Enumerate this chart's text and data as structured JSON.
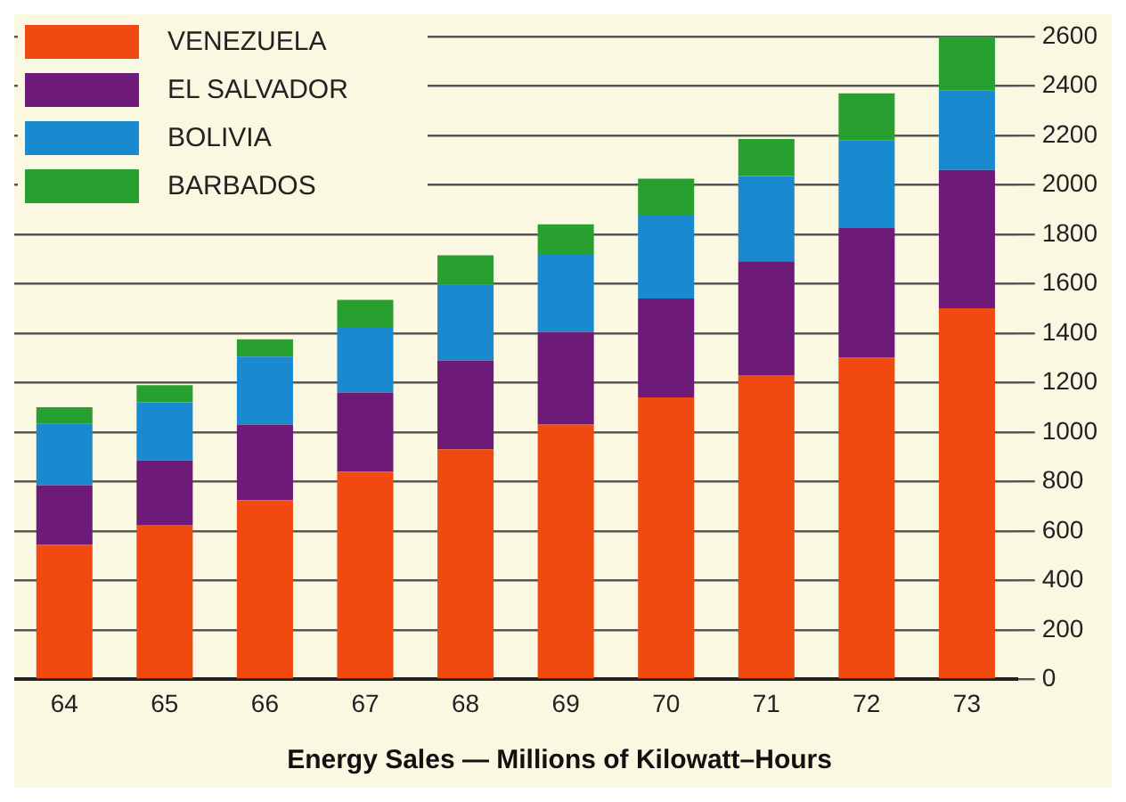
{
  "chart_data": {
    "type": "bar",
    "title": "Energy Sales — Millions of Kilowatt–Hours",
    "categories": [
      "64",
      "65",
      "66",
      "67",
      "68",
      "69",
      "70",
      "71",
      "72",
      "73"
    ],
    "series": [
      {
        "name": "VENEZUELA",
        "color": "#f04a10",
        "values": [
          545,
          625,
          725,
          840,
          930,
          1030,
          1140,
          1230,
          1300,
          1500
        ]
      },
      {
        "name": "EL SALVADOR",
        "color": "#6e1a78",
        "values": [
          240,
          260,
          305,
          320,
          360,
          375,
          400,
          460,
          525,
          560
        ]
      },
      {
        "name": "BOLIVIA",
        "color": "#1a8ad0",
        "values": [
          250,
          235,
          275,
          265,
          305,
          315,
          335,
          345,
          355,
          320
        ]
      },
      {
        "name": "BARBADOS",
        "color": "#28a030",
        "values": [
          65,
          70,
          70,
          110,
          120,
          120,
          150,
          150,
          190,
          220
        ]
      }
    ],
    "stacked": true,
    "ylim": [
      0,
      2600
    ],
    "yticks": [
      0,
      200,
      400,
      600,
      800,
      1000,
      1200,
      1400,
      1600,
      1800,
      2000,
      2200,
      2400,
      2600
    ],
    "grid": "y",
    "legend": "top left"
  }
}
